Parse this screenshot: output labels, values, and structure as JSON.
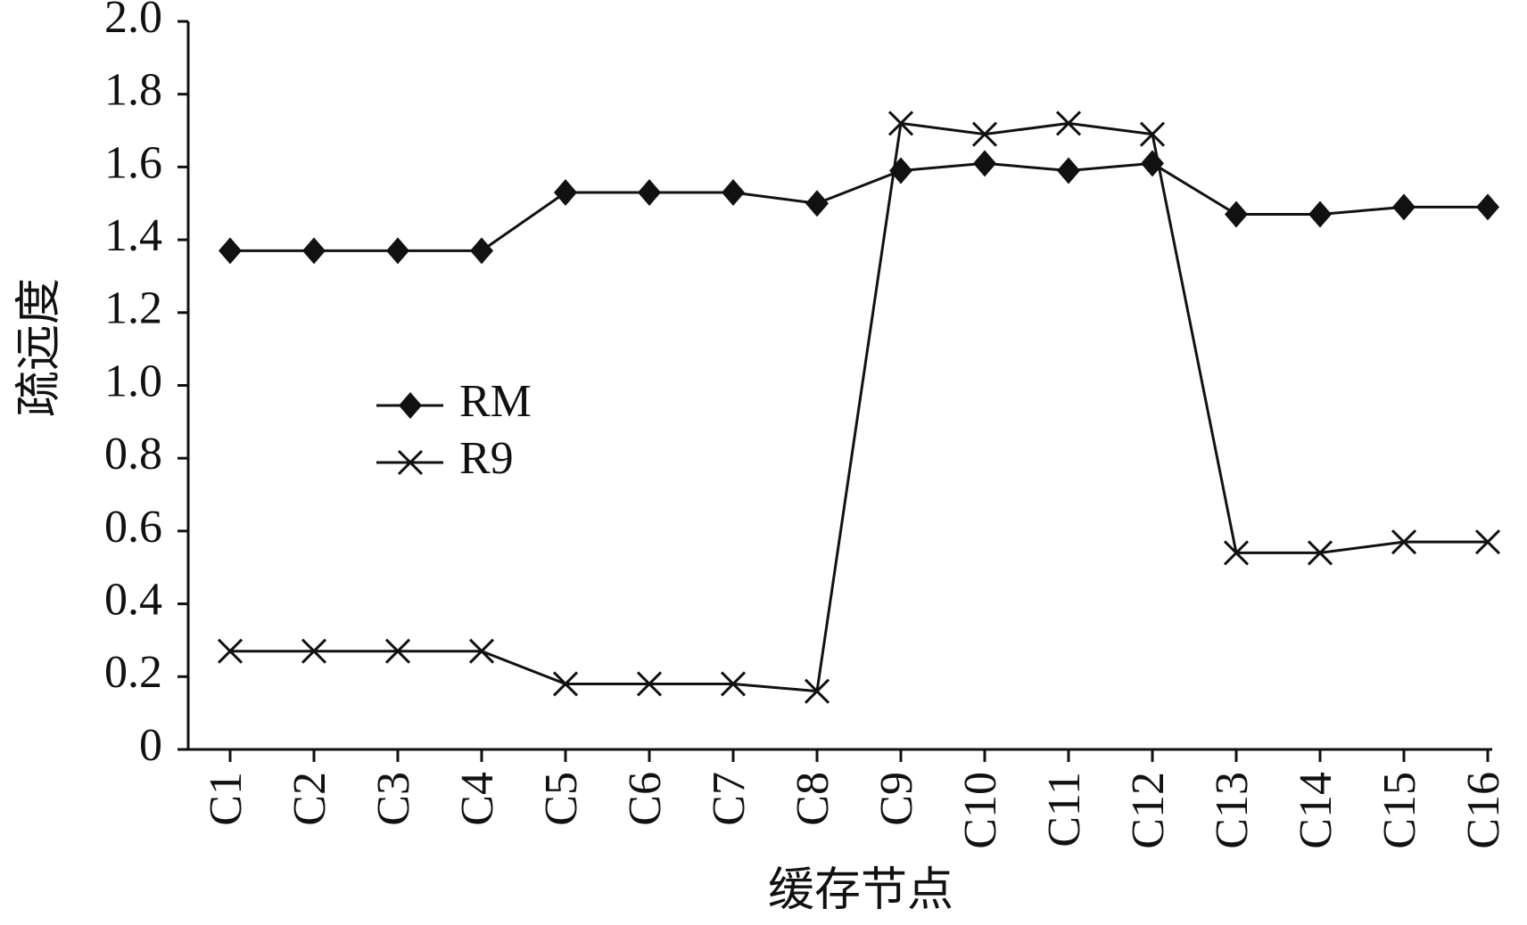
{
  "chart_data": {
    "type": "line",
    "x_label": "缓存节点",
    "y_label": "疏远度",
    "categories": [
      "C1",
      "C2",
      "C3",
      "C4",
      "C5",
      "C6",
      "C7",
      "C8",
      "C9",
      "C10",
      "C11",
      "C12",
      "C13",
      "C14",
      "C15",
      "C16"
    ],
    "series": [
      {
        "name": "RM",
        "color": "#111111",
        "marker": "diamond",
        "values": [
          1.37,
          1.37,
          1.37,
          1.37,
          1.53,
          1.53,
          1.53,
          1.5,
          1.59,
          1.61,
          1.59,
          1.61,
          1.47,
          1.47,
          1.49,
          1.49
        ]
      },
      {
        "name": "R9",
        "color": "#111111",
        "marker": "x",
        "values": [
          0.27,
          0.27,
          0.27,
          0.27,
          0.18,
          0.18,
          0.18,
          0.16,
          1.72,
          1.69,
          1.72,
          1.69,
          0.54,
          0.54,
          0.57,
          0.57
        ]
      }
    ],
    "ylim": [
      0,
      2
    ],
    "yticks": [
      0,
      0.2,
      0.4,
      0.6,
      0.8,
      {
        "value": 1,
        "label": "1.0"
      },
      1.2,
      1.4,
      1.6,
      1.8,
      {
        "value": 2,
        "label": "2.0"
      }
    ],
    "grid": false,
    "legend": "left"
  }
}
